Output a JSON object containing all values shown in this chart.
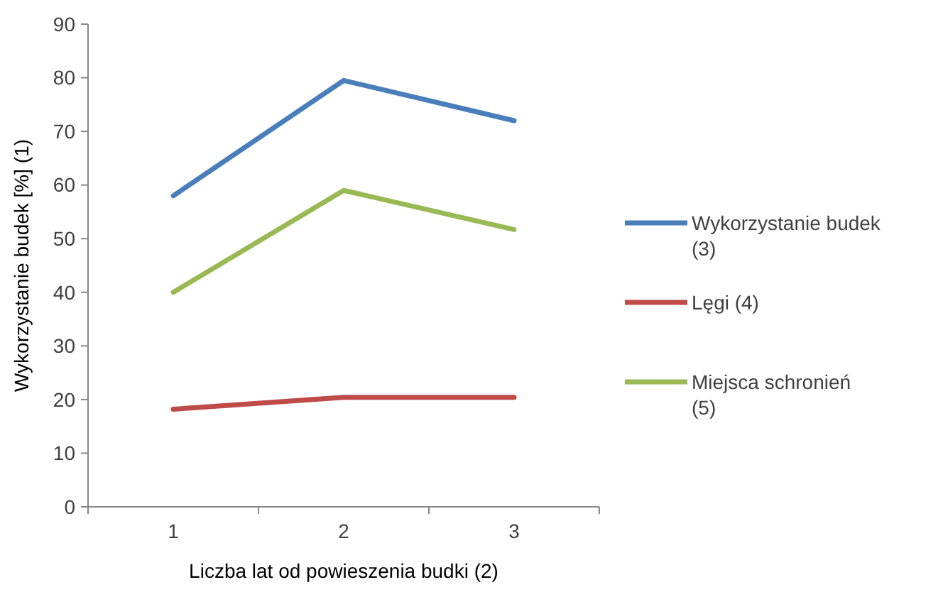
{
  "chart_data": {
    "type": "line",
    "xlabel": "Liczba lat od powieszenia budki (2)",
    "ylabel": "Wykorzystanie budek [%] (1)",
    "categories": [
      "1",
      "2",
      "3"
    ],
    "ylim": [
      0,
      90
    ],
    "yticks": [
      0,
      10,
      20,
      30,
      40,
      50,
      60,
      70,
      80,
      90
    ],
    "grid": false,
    "legend": "right",
    "marker": "none",
    "line_style": "solid",
    "series": [
      {
        "name": "Wykorzystanie budek (3)",
        "color": "#4a7ebb",
        "values": [
          58,
          79.5,
          72
        ]
      },
      {
        "name": "Lęgi (4)",
        "color": "#be4b48",
        "values": [
          18.2,
          20.4,
          20.4
        ]
      },
      {
        "name": "Miejsca schronień (5)",
        "color": "#98b954",
        "values": [
          40,
          59,
          51.7
        ]
      }
    ]
  }
}
